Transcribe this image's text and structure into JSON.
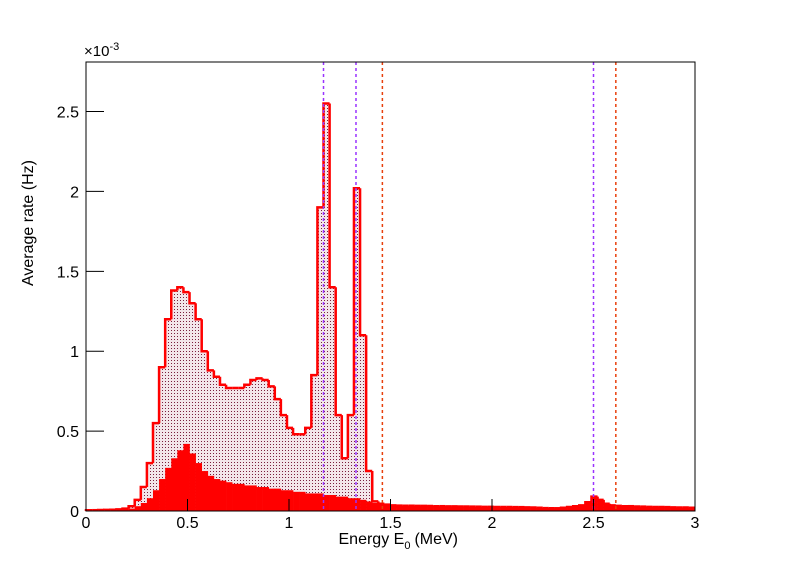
{
  "chart_data": {
    "type": "histogram",
    "ylabel": "Average rate (Hz)",
    "xlabel": {
      "text": "Energy E",
      "sub": "0",
      "unit": "(MeV)"
    },
    "y_exponent": {
      "base": "×10",
      "power": "-3"
    },
    "xlim": [
      0,
      3
    ],
    "ylim": [
      0,
      2.81
    ],
    "xticks": [
      0,
      0.5,
      1,
      1.5,
      2,
      2.5,
      3
    ],
    "yticks": [
      0,
      0.5,
      1,
      1.5,
      2,
      2.5
    ],
    "bins": [
      0,
      0.03,
      0.06,
      0.09,
      0.12,
      0.15,
      0.18,
      0.21,
      0.24,
      0.27,
      0.3,
      0.33,
      0.36,
      0.39,
      0.42,
      0.45,
      0.48,
      0.51,
      0.54,
      0.57,
      0.6,
      0.63,
      0.66,
      0.69,
      0.72,
      0.75,
      0.78,
      0.81,
      0.84,
      0.87,
      0.9,
      0.93,
      0.96,
      0.99,
      1.02,
      1.05,
      1.08,
      1.11,
      1.14,
      1.17,
      1.2,
      1.23,
      1.26,
      1.29,
      1.32,
      1.35,
      1.38,
      1.41,
      1.44,
      1.47,
      1.5,
      1.53,
      1.56,
      1.59,
      1.62,
      1.65,
      1.68,
      1.71,
      1.74,
      1.77,
      1.8,
      1.83,
      1.86,
      1.89,
      1.92,
      1.95,
      1.98,
      2.01,
      2.04,
      2.07,
      2.1,
      2.13,
      2.16,
      2.19,
      2.22,
      2.25,
      2.28,
      2.31,
      2.34,
      2.37,
      2.4,
      2.43,
      2.46,
      2.49,
      2.52,
      2.55,
      2.58,
      2.61,
      2.64,
      2.67,
      2.7,
      2.73,
      2.76,
      2.79,
      2.82,
      2.85,
      2.88,
      2.91,
      2.94,
      2.97,
      3
    ],
    "series": [
      {
        "color": "#ff0000",
        "fill": "hatch",
        "values": [
          0.005,
          0.005,
          0.006,
          0.007,
          0.008,
          0.01,
          0.015,
          0.03,
          0.07,
          0.15,
          0.3,
          0.55,
          0.9,
          1.2,
          1.38,
          1.4,
          1.37,
          1.3,
          1.2,
          1.0,
          0.88,
          0.84,
          0.79,
          0.77,
          0.77,
          0.77,
          0.79,
          0.82,
          0.83,
          0.82,
          0.78,
          0.7,
          0.6,
          0.52,
          0.48,
          0.48,
          0.52,
          0.85,
          1.9,
          2.55,
          1.4,
          0.6,
          0.33,
          0.6,
          2.02,
          1.1,
          0.25,
          0.06,
          0.045,
          0.04,
          0.035,
          0.034,
          0.033,
          0.033,
          0.032,
          0.032,
          0.031,
          0.03,
          0.03,
          0.029,
          0.029,
          0.028,
          0.028,
          0.027,
          0.027,
          0.026,
          0.026,
          0.025,
          0.025,
          0.025,
          0.024,
          0.024,
          0.023,
          0.022,
          0.02,
          0.018,
          0.017,
          0.017,
          0.02,
          0.025,
          0.03,
          0.035,
          0.055,
          0.09,
          0.07,
          0.045,
          0.035,
          0.032,
          0.03,
          0.03,
          0.028,
          0.027,
          0.026,
          0.025,
          0.025,
          0.024,
          0.023,
          0.022,
          0.022,
          0.02
        ]
      },
      {
        "color": "#ff0000",
        "fill": "solid",
        "values": [
          0.003,
          0.003,
          0.004,
          0.004,
          0.005,
          0.006,
          0.01,
          0.015,
          0.03,
          0.05,
          0.08,
          0.13,
          0.2,
          0.27,
          0.33,
          0.38,
          0.42,
          0.36,
          0.3,
          0.25,
          0.22,
          0.2,
          0.19,
          0.18,
          0.17,
          0.17,
          0.16,
          0.16,
          0.15,
          0.15,
          0.14,
          0.14,
          0.13,
          0.13,
          0.12,
          0.12,
          0.11,
          0.11,
          0.11,
          0.1,
          0.1,
          0.09,
          0.09,
          0.08,
          0.08,
          0.07,
          0.06,
          0.05,
          0.045,
          0.04,
          0.035,
          0.034,
          0.033,
          0.033,
          0.032,
          0.032,
          0.031,
          0.03,
          0.03,
          0.029,
          0.029,
          0.028,
          0.028,
          0.027,
          0.027,
          0.026,
          0.026,
          0.025,
          0.025,
          0.025,
          0.024,
          0.024,
          0.023,
          0.022,
          0.02,
          0.018,
          0.017,
          0.017,
          0.02,
          0.025,
          0.03,
          0.035,
          0.055,
          0.09,
          0.07,
          0.045,
          0.035,
          0.032,
          0.03,
          0.03,
          0.028,
          0.027,
          0.026,
          0.025,
          0.025,
          0.024,
          0.023,
          0.022,
          0.022,
          0.02
        ]
      }
    ],
    "vlines": [
      {
        "x": 1.17,
        "color": "#9933ff"
      },
      {
        "x": 1.33,
        "color": "#9933ff"
      },
      {
        "x": 2.5,
        "color": "#9933ff"
      },
      {
        "x": 1.46,
        "color": "#e8400c"
      },
      {
        "x": 2.61,
        "color": "#e8400c"
      }
    ]
  }
}
